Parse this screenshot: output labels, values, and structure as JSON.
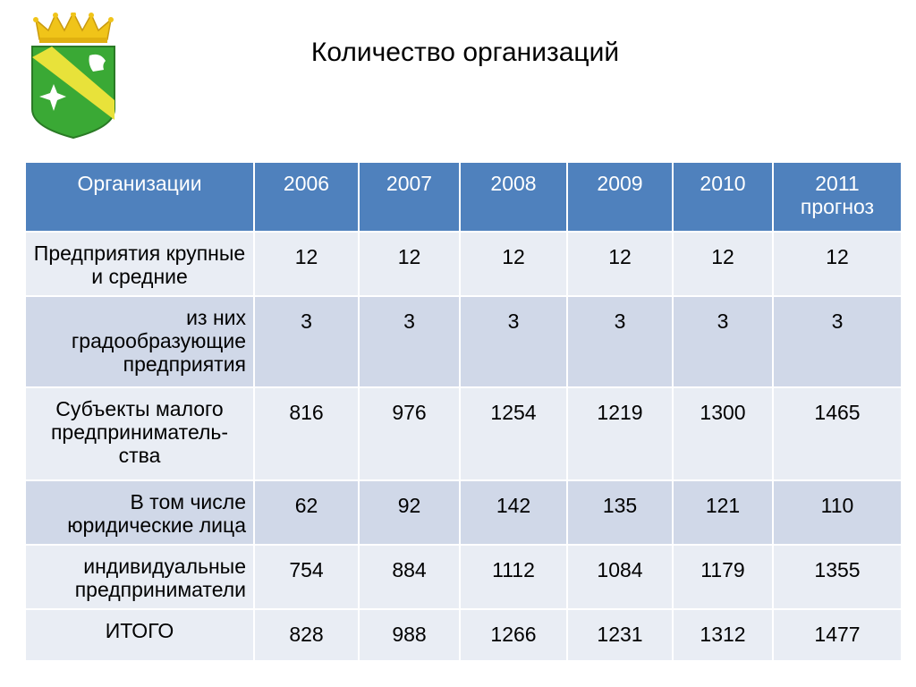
{
  "title": "Количество организаций",
  "emblem": {
    "icon": "coat-of-arms-icon",
    "colors": {
      "shield": "#3aa935",
      "stripe": "#e8e23a",
      "crown": "#f0c419"
    }
  },
  "table": {
    "headers": [
      "Организации",
      "2006",
      "2007",
      "2008",
      "2009",
      "2010",
      "2011 прогноз"
    ],
    "rows": [
      {
        "label": "Предприятия крупные и средние",
        "values": [
          "12",
          "12",
          "12",
          "12",
          "12",
          "12"
        ]
      },
      {
        "label": "из них градообразующие предприятия",
        "values": [
          "3",
          "3",
          "3",
          "3",
          "3",
          "3"
        ]
      },
      {
        "label": "Субъекты малого предприниматель-ства",
        "values": [
          "816",
          "976",
          "1254",
          "1219",
          "1300",
          "1465"
        ]
      },
      {
        "label": "В том числе юридические лица",
        "values": [
          "62",
          "92",
          "142",
          "135",
          "121",
          "110"
        ]
      },
      {
        "label": "индивидуальные предприниматели",
        "values": [
          "754",
          "884",
          "1112",
          "1084",
          "1179",
          "1355"
        ]
      },
      {
        "label": "ИТОГО",
        "values": [
          "828",
          "988",
          "1266",
          "1231",
          "1312",
          "1477"
        ]
      }
    ]
  }
}
